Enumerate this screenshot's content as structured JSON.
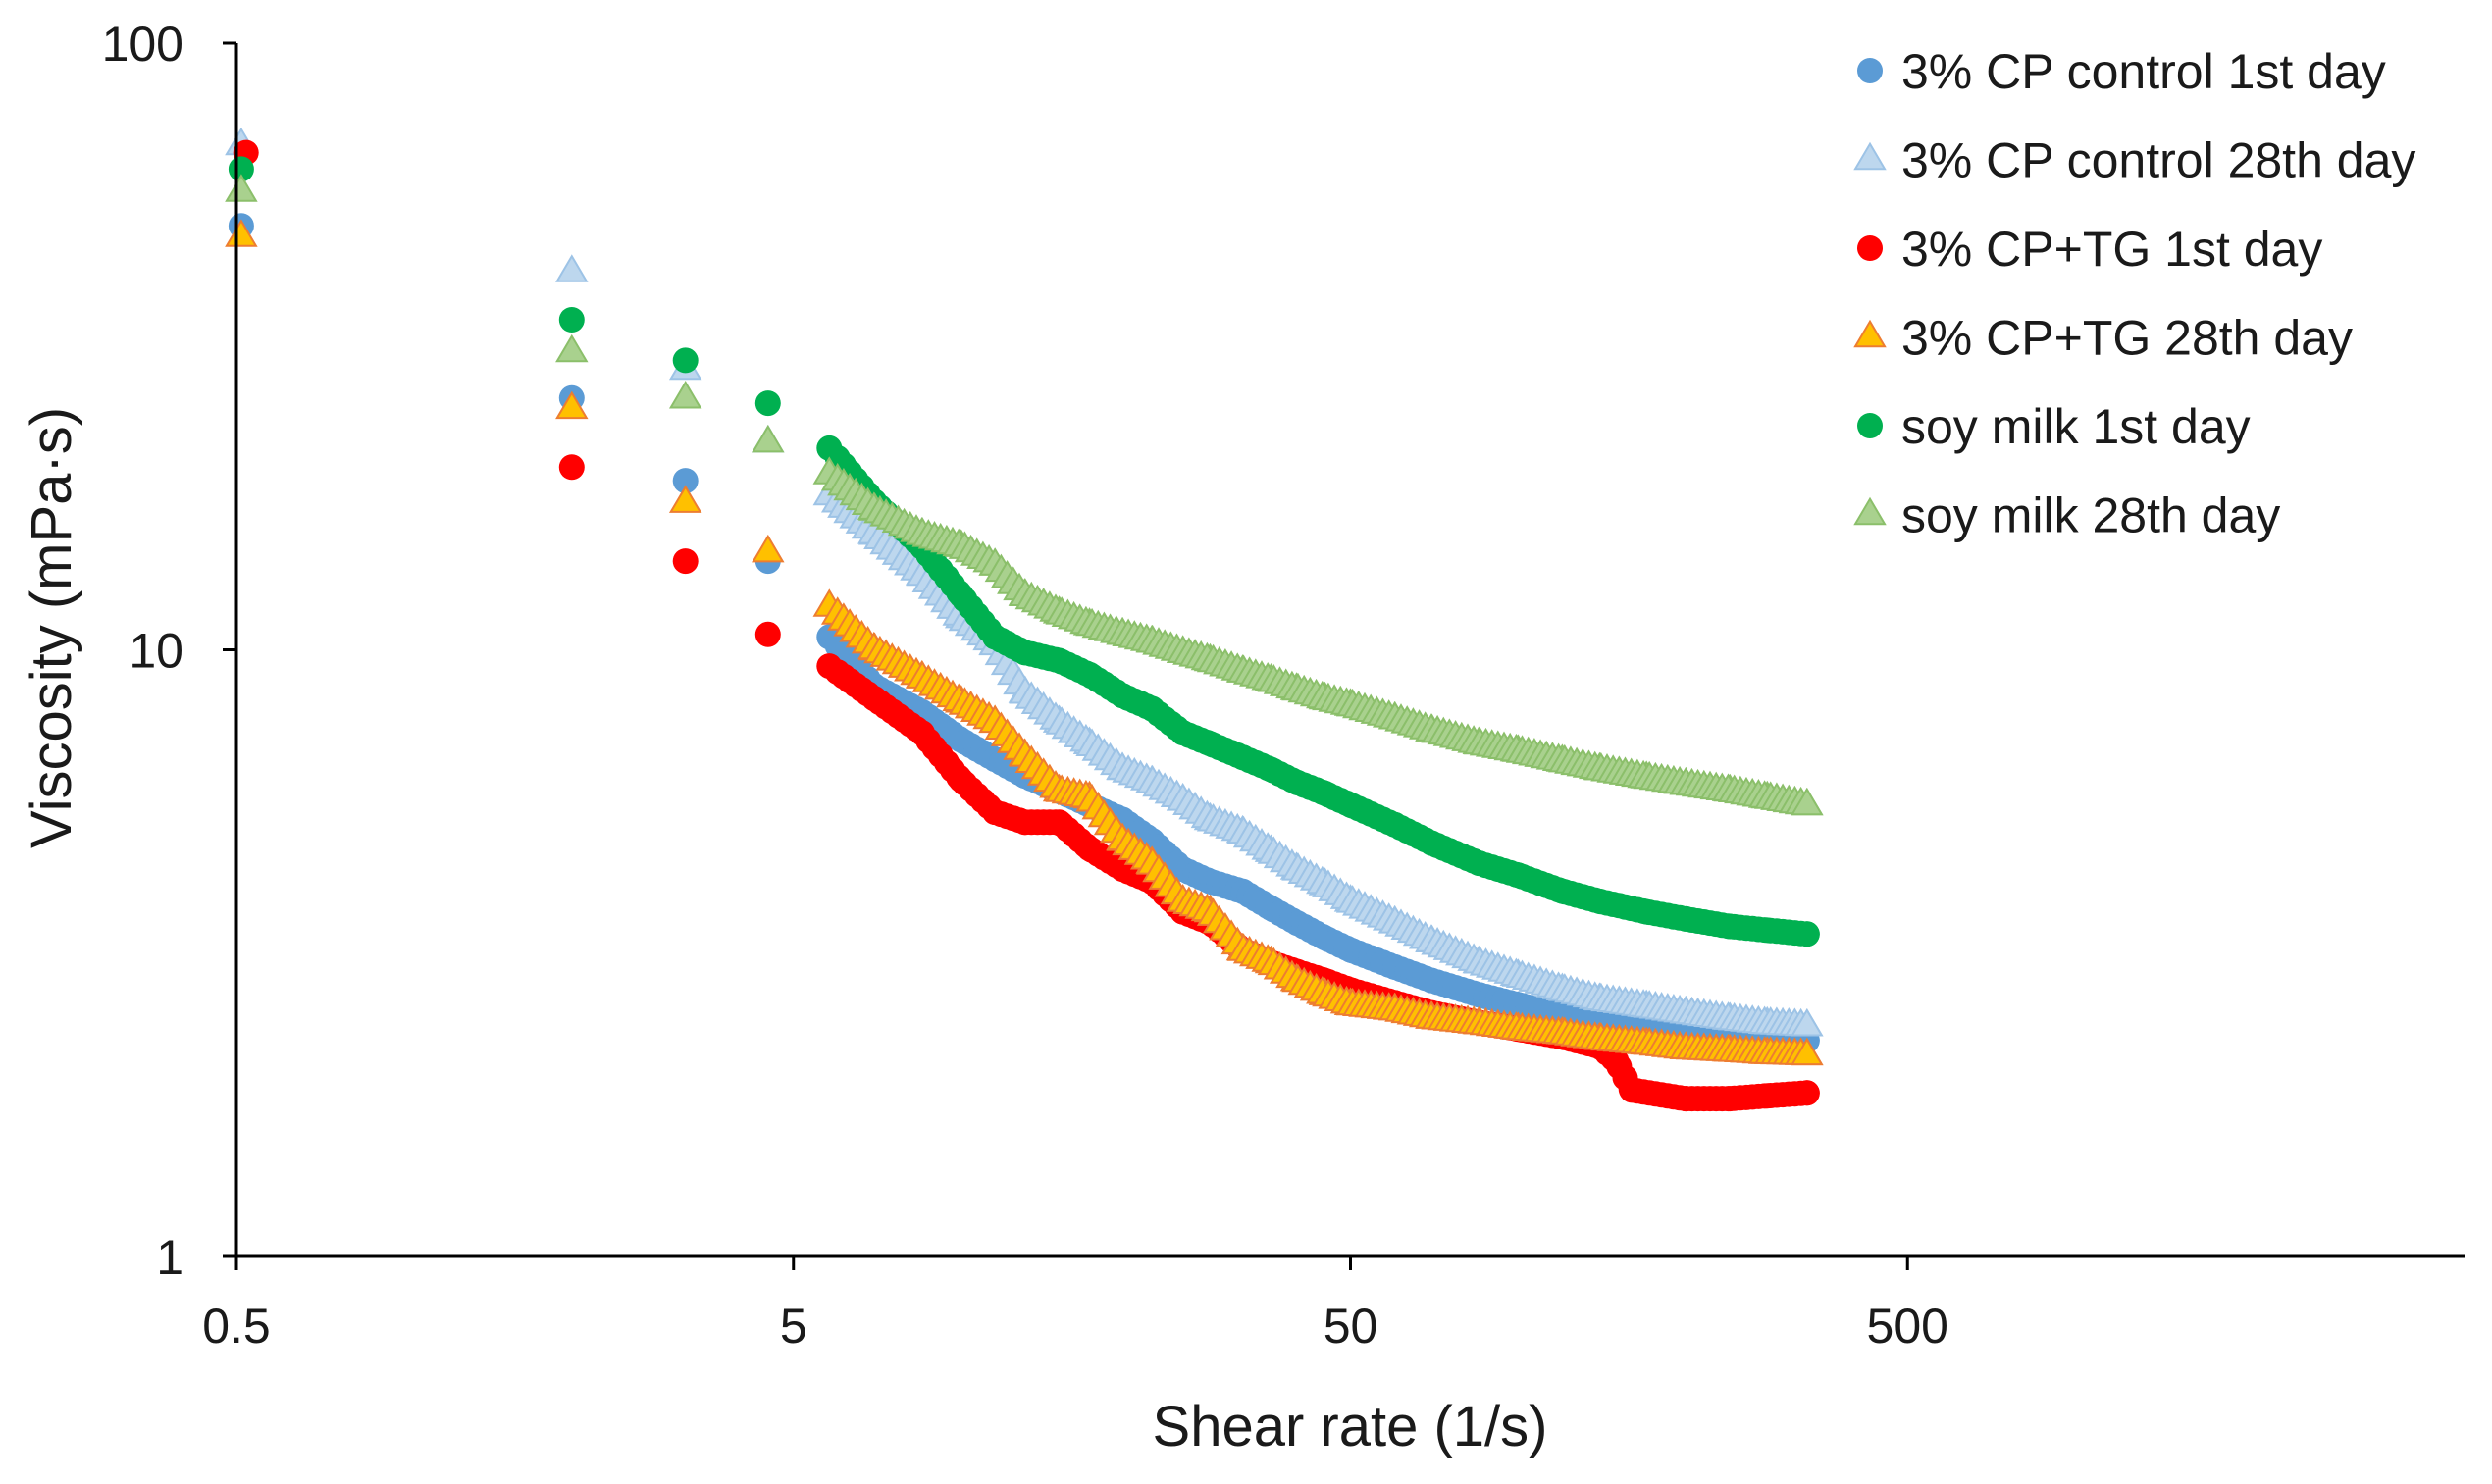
{
  "chart_data": {
    "type": "scatter",
    "title": "",
    "xlabel": "Shear rate (1/s)",
    "ylabel": "Viscosity (mPa·s)",
    "xscale": "log",
    "yscale": "log",
    "xlim": [
      0.5,
      5000
    ],
    "ylim": [
      1,
      100
    ],
    "xticks": [
      0.5,
      5,
      50,
      500
    ],
    "xtick_labels": [
      "0.5",
      "5",
      "50",
      "500"
    ],
    "yticks": [
      1,
      10,
      100
    ],
    "ytick_labels": [
      "1",
      "10",
      "100"
    ],
    "grid": false,
    "legend_position": "top-right",
    "series": [
      {
        "name": "3% CP control 1st day",
        "marker": "circle",
        "color": "#5b9bd5",
        "stroke": "#5b9bd5",
        "x": [
          0.51,
          2.0,
          3.2,
          4.5,
          5.8,
          7.0,
          8.5,
          10.0,
          11.5,
          13.0,
          15.0,
          17.0,
          19.5,
          22.0,
          25.0,
          28.0,
          32.0,
          36.0,
          40.0,
          45.0,
          50.0,
          60.0,
          70.0,
          85.0,
          100.0,
          120.0,
          140.0,
          170.0,
          200.0,
          240.0,
          280.0,
          330.0
        ],
        "y": [
          50,
          26,
          19,
          14,
          10.5,
          8.7,
          7.9,
          7.1,
          6.6,
          6.2,
          5.85,
          5.55,
          5.25,
          4.85,
          4.35,
          4.15,
          4.0,
          3.75,
          3.55,
          3.35,
          3.2,
          3.0,
          2.85,
          2.7,
          2.6,
          2.5,
          2.43,
          2.38,
          2.33,
          2.3,
          2.28,
          2.27
        ]
      },
      {
        "name": "3% CP control 28th day",
        "marker": "triangle",
        "color": "#bdd7ee",
        "stroke": "#9dc3e6",
        "x": [
          0.51,
          2.0,
          3.2,
          4.5,
          5.8,
          7.0,
          8.5,
          10.0,
          11.5,
          13.0,
          15.0,
          17.0,
          19.5,
          22.0,
          25.0,
          28.0,
          32.0,
          36.0,
          40.0,
          45.0,
          50.0,
          60.0,
          70.0,
          85.0,
          100.0,
          120.0,
          140.0,
          170.0,
          200.0,
          240.0,
          280.0,
          330.0
        ],
        "y": [
          68,
          42,
          29,
          22,
          18,
          15.5,
          13.3,
          11.3,
          10.2,
          8.5,
          7.6,
          7.0,
          6.35,
          6.05,
          5.65,
          5.25,
          5.0,
          4.65,
          4.35,
          4.1,
          3.85,
          3.55,
          3.3,
          3.05,
          2.9,
          2.75,
          2.65,
          2.58,
          2.52,
          2.46,
          2.42,
          2.4
        ]
      },
      {
        "name": "3% CP+TG 1st day",
        "marker": "circle",
        "color": "#ff0000",
        "stroke": "#ff0000",
        "x": [
          0.52,
          2.0,
          3.2,
          4.5,
          5.8,
          7.0,
          8.5,
          10.0,
          11.5,
          13.0,
          15.0,
          17.0,
          19.5,
          22.0,
          25.0,
          28.0,
          32.0,
          36.0,
          40.0,
          45.0,
          50.0,
          60.0,
          70.0,
          85.0,
          100.0,
          120.0,
          140.0,
          150.0,
          160.0,
          200.0,
          240.0,
          280.0,
          330.0
        ],
        "y": [
          66,
          20,
          14,
          10.6,
          9.4,
          8.3,
          7.3,
          6.1,
          5.4,
          5.2,
          5.2,
          4.7,
          4.35,
          4.15,
          3.7,
          3.55,
          3.2,
          3.05,
          2.95,
          2.85,
          2.75,
          2.62,
          2.52,
          2.43,
          2.37,
          2.3,
          2.22,
          2.1,
          1.88,
          1.82,
          1.82,
          1.84,
          1.86
        ]
      },
      {
        "name": "3% CP+TG 28th day",
        "marker": "triangle",
        "color": "#ffc000",
        "stroke": "#ed7d31",
        "x": [
          0.51,
          2.0,
          3.2,
          4.5,
          5.8,
          7.0,
          8.5,
          10.0,
          11.5,
          13.0,
          15.0,
          17.0,
          19.5,
          22.0,
          25.0,
          28.0,
          32.0,
          36.0,
          40.0,
          45.0,
          50.0,
          60.0,
          70.0,
          85.0,
          100.0,
          120.0,
          140.0,
          170.0,
          200.0,
          240.0,
          280.0,
          330.0
        ],
        "y": [
          48,
          25,
          17.5,
          14.5,
          11.8,
          10.0,
          9.0,
          8.2,
          7.6,
          6.7,
          5.85,
          5.7,
          4.85,
          4.45,
          3.85,
          3.7,
          3.2,
          3.05,
          2.85,
          2.7,
          2.6,
          2.55,
          2.47,
          2.42,
          2.37,
          2.33,
          2.28,
          2.24,
          2.2,
          2.18,
          2.16,
          2.15
        ]
      },
      {
        "name": "soy milk 1st day",
        "marker": "circle",
        "color": "#00b050",
        "stroke": "#00b050",
        "x": [
          0.51,
          2.0,
          3.2,
          4.5,
          5.8,
          7.0,
          8.5,
          10.0,
          11.5,
          13.0,
          15.0,
          17.0,
          19.5,
          22.0,
          25.0,
          28.0,
          32.0,
          36.0,
          40.0,
          45.0,
          50.0,
          60.0,
          70.0,
          85.0,
          100.0,
          120.0,
          140.0,
          170.0,
          200.0,
          240.0,
          280.0,
          330.0
        ],
        "y": [
          62,
          35,
          30,
          25.5,
          21.5,
          17.5,
          14.8,
          12.3,
          10.5,
          9.9,
          9.6,
          9.1,
          8.4,
          8.0,
          7.3,
          7.0,
          6.65,
          6.35,
          6.05,
          5.8,
          5.55,
          5.15,
          4.8,
          4.45,
          4.25,
          4.0,
          3.85,
          3.7,
          3.6,
          3.5,
          3.45,
          3.4
        ]
      },
      {
        "name": "soy milk 28th day",
        "marker": "triangle",
        "color": "#a9d18e",
        "stroke": "#8bbf6a",
        "x": [
          0.51,
          2.0,
          3.2,
          4.5,
          5.8,
          7.0,
          8.5,
          10.0,
          11.5,
          13.0,
          15.0,
          17.0,
          19.5,
          22.0,
          25.0,
          28.0,
          32.0,
          36.0,
          40.0,
          45.0,
          50.0,
          60.0,
          70.0,
          85.0,
          100.0,
          120.0,
          140.0,
          170.0,
          200.0,
          240.0,
          280.0,
          330.0
        ],
        "y": [
          57,
          31,
          26,
          22,
          19.5,
          17,
          15.5,
          14.8,
          13.8,
          12.3,
          11.5,
          11.0,
          10.6,
          10.3,
          9.9,
          9.6,
          9.2,
          8.9,
          8.6,
          8.3,
          8.1,
          7.7,
          7.35,
          7.0,
          6.8,
          6.55,
          6.35,
          6.15,
          6.0,
          5.85,
          5.7,
          5.55
        ]
      }
    ]
  }
}
